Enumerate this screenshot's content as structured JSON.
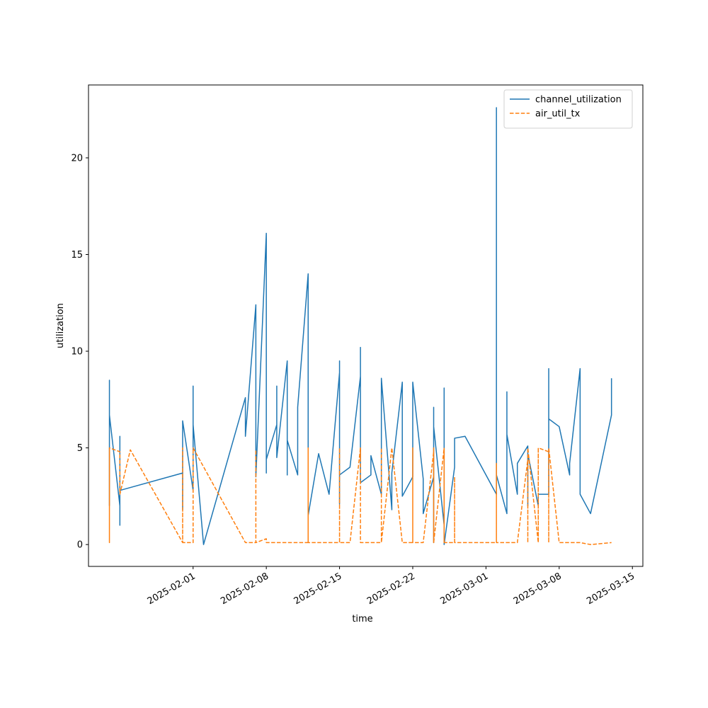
{
  "chart_data": {
    "type": "line",
    "xlabel": "time",
    "ylabel": "utilization",
    "xlim": [
      "2025-01-22",
      "2025-03-16"
    ],
    "ylim": [
      -1.13,
      23.77
    ],
    "xticks": [
      "2025-02-01",
      "2025-02-08",
      "2025-02-15",
      "2025-02-22",
      "2025-03-01",
      "2025-03-08",
      "2025-03-15"
    ],
    "yticks": [
      0,
      5,
      10,
      15,
      20
    ],
    "legend": "upper right",
    "grid": false,
    "series": [
      {
        "name": "channel_utilization",
        "color": "#1f77b4",
        "dashed": false,
        "x": [
          "2025-01-24",
          "2025-01-24",
          "2025-01-24",
          "2025-01-24",
          "2025-01-24",
          "2025-01-24",
          "2025-01-25",
          "2025-01-25",
          "2025-01-25",
          "2025-01-25",
          "2025-01-25",
          "2025-01-31",
          "2025-01-31",
          "2025-01-31",
          "2025-02-01",
          "2025-02-01",
          "2025-02-01",
          "2025-02-01",
          "2025-02-01",
          "2025-02-01",
          "2025-02-02",
          "2025-02-06",
          "2025-02-06",
          "2025-02-07",
          "2025-02-07",
          "2025-02-07",
          "2025-02-08",
          "2025-02-08",
          "2025-02-08",
          "2025-02-08",
          "2025-02-08",
          "2025-02-08",
          "2025-02-09",
          "2025-02-09",
          "2025-02-09",
          "2025-02-10",
          "2025-02-10",
          "2025-02-10",
          "2025-02-11",
          "2025-02-11",
          "2025-02-11",
          "2025-02-12",
          "2025-02-12",
          "2025-02-12",
          "2025-02-13",
          "2025-02-14",
          "2025-02-15",
          "2025-02-15",
          "2025-02-15",
          "2025-02-15",
          "2025-02-16",
          "2025-02-17",
          "2025-02-17",
          "2025-02-17",
          "2025-02-17",
          "2025-02-17",
          "2025-02-18",
          "2025-02-18",
          "2025-02-19",
          "2025-02-19",
          "2025-02-20",
          "2025-02-20",
          "2025-02-21",
          "2025-02-21",
          "2025-02-21",
          "2025-02-22",
          "2025-02-22",
          "2025-02-23",
          "2025-02-23",
          "2025-02-24",
          "2025-02-24",
          "2025-02-24",
          "2025-02-24",
          "2025-02-24",
          "2025-02-24",
          "2025-02-25",
          "2025-02-25",
          "2025-02-25",
          "2025-02-25",
          "2025-02-26",
          "2025-02-26",
          "2025-02-27",
          "2025-03-02",
          "2025-03-02",
          "2025-03-02",
          "2025-03-03",
          "2025-03-03",
          "2025-03-03",
          "2025-03-03",
          "2025-03-03",
          "2025-03-04",
          "2025-03-04",
          "2025-03-05",
          "2025-03-05",
          "2025-03-05",
          "2025-03-06",
          "2025-03-06",
          "2025-03-07",
          "2025-03-07",
          "2025-03-07",
          "2025-03-07",
          "2025-03-08",
          "2025-03-09",
          "2025-03-09",
          "2025-03-10",
          "2025-03-10",
          "2025-03-10",
          "2025-03-11",
          "2025-03-13",
          "2025-03-13"
        ],
        "values": [
          2.0,
          3.9,
          3.0,
          8.5,
          3.0,
          6.7,
          2.0,
          5.6,
          1.0,
          3.9,
          2.8,
          3.7,
          1.8,
          6.4,
          2.8,
          8.2,
          3.0,
          7.5,
          3.5,
          6.2,
          0.0,
          7.6,
          5.6,
          12.4,
          3.9,
          3.5,
          16.1,
          3.7,
          8.9,
          16.0,
          4.5,
          4.4,
          6.2,
          8.2,
          4.5,
          9.5,
          3.6,
          5.4,
          3.6,
          7.0,
          7.1,
          14.0,
          7.6,
          1.5,
          4.7,
          2.6,
          8.9,
          2.1,
          9.5,
          3.6,
          4.0,
          8.7,
          4.5,
          8.5,
          10.2,
          3.2,
          3.6,
          4.6,
          2.6,
          8.6,
          1.8,
          3.7,
          8.4,
          5.5,
          2.5,
          3.5,
          8.4,
          3.4,
          1.6,
          3.5,
          3.5,
          0.1,
          7.1,
          0.3,
          6.1,
          1.0,
          4.9,
          8.1,
          0.0,
          4.0,
          5.5,
          5.6,
          2.6,
          22.6,
          3.6,
          1.6,
          7.8,
          5.1,
          7.9,
          5.7,
          2.6,
          4.2,
          5.1,
          2.0,
          4.7,
          2.0,
          2.6,
          2.6,
          9.1,
          2.7,
          6.5,
          6.1,
          3.6,
          4.2,
          9.1,
          5.4,
          2.6,
          1.6,
          6.7,
          8.6
        ]
      },
      {
        "name": "air_util_tx",
        "color": "#ff7f0e",
        "dashed": true,
        "x": [
          "2025-01-24",
          "2025-01-24",
          "2025-01-24",
          "2025-01-25",
          "2025-01-25",
          "2025-01-26",
          "2025-01-31",
          "2025-01-31",
          "2025-01-31",
          "2025-02-01",
          "2025-02-01",
          "2025-02-01",
          "2025-02-06",
          "2025-02-07",
          "2025-02-07",
          "2025-02-07",
          "2025-02-08",
          "2025-02-08",
          "2025-02-10",
          "2025-02-11",
          "2025-02-12",
          "2025-02-12",
          "2025-02-12",
          "2025-02-12",
          "2025-02-12",
          "2025-02-13",
          "2025-02-15",
          "2025-02-15",
          "2025-02-15",
          "2025-02-16",
          "2025-02-17",
          "2025-02-17",
          "2025-02-17",
          "2025-02-17",
          "2025-02-18",
          "2025-02-19",
          "2025-02-19",
          "2025-02-19",
          "2025-02-20",
          "2025-02-21",
          "2025-02-21",
          "2025-02-22",
          "2025-02-22",
          "2025-02-22",
          "2025-02-23",
          "2025-02-24",
          "2025-02-24",
          "2025-02-24",
          "2025-02-24",
          "2025-02-24",
          "2025-02-25",
          "2025-02-25",
          "2025-02-25",
          "2025-02-25",
          "2025-02-26",
          "2025-02-26",
          "2025-02-26",
          "2025-02-27",
          "2025-03-02",
          "2025-03-02",
          "2025-03-02",
          "2025-03-03",
          "2025-03-04",
          "2025-03-05",
          "2025-03-05",
          "2025-03-05",
          "2025-03-06",
          "2025-03-06",
          "2025-03-06",
          "2025-03-06",
          "2025-03-07",
          "2025-03-07",
          "2025-03-07",
          "2025-03-08",
          "2025-03-10",
          "2025-03-11",
          "2025-03-13"
        ],
        "values": [
          4.9,
          0.1,
          5.0,
          4.8,
          2.6,
          4.9,
          0.1,
          5.0,
          0.1,
          0.1,
          4.9,
          5.0,
          0.1,
          0.1,
          4.9,
          0.1,
          0.3,
          0.1,
          0.1,
          0.1,
          0.1,
          5.0,
          0.1,
          5.0,
          0.1,
          0.1,
          0.1,
          5.0,
          0.1,
          0.1,
          5.0,
          4.5,
          5.0,
          0.1,
          0.1,
          0.1,
          5.0,
          0.1,
          5.0,
          0.1,
          0.1,
          0.1,
          5.0,
          0.1,
          0.1,
          4.8,
          5.0,
          0.1,
          4.8,
          0.1,
          5.0,
          0.1,
          4.9,
          0.1,
          0.1,
          3.5,
          0.1,
          0.1,
          0.1,
          4.2,
          0.1,
          0.1,
          0.1,
          4.4,
          0.1,
          5.0,
          0.1,
          5.0,
          0.1,
          5.0,
          4.8,
          0.1,
          5.0,
          0.1,
          0.1,
          0.0,
          0.1
        ]
      }
    ]
  }
}
